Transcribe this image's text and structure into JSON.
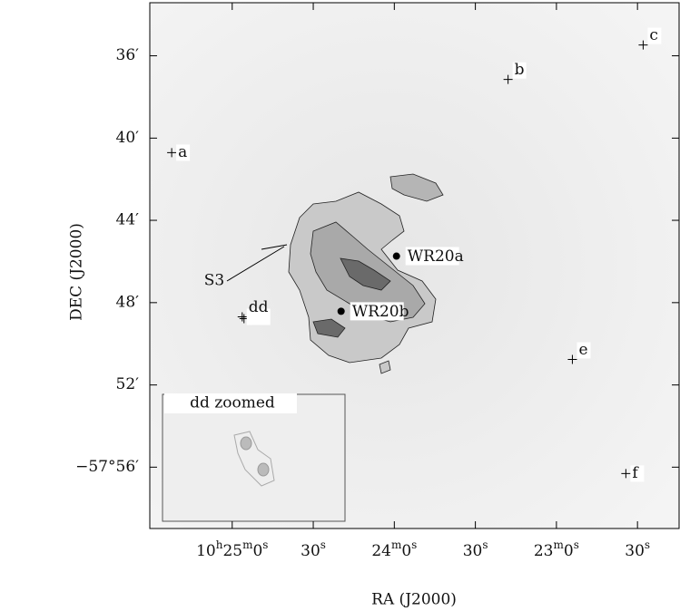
{
  "chart_data": {
    "type": "map",
    "xlabel": "RA (J2000)",
    "ylabel": "DEC (J2000)",
    "xlim": [
      37530.5,
      37334.6
    ],
    "ylim": [
      -57.983,
      -57.557
    ],
    "xticks": [
      {
        "value": 37500,
        "label": "10h25m0s"
      },
      {
        "value": 37470,
        "label": "30s"
      },
      {
        "value": 37440,
        "label": "24m0s"
      },
      {
        "value": 37410,
        "label": "30s"
      },
      {
        "value": 37380,
        "label": "23m0s"
      },
      {
        "value": 37350,
        "label": "30s"
      }
    ],
    "yticks": [
      {
        "value": -57.6,
        "label": "36′"
      },
      {
        "value": -57.6667,
        "label": "40′"
      },
      {
        "value": -57.7333,
        "label": "44′"
      },
      {
        "value": -57.8,
        "label": "48′"
      },
      {
        "value": -57.8667,
        "label": "52′"
      },
      {
        "value": -57.9333,
        "label": "−57°56′"
      }
    ],
    "sources": [
      {
        "label": "a",
        "ra": 37522.4,
        "dec": -57.6785,
        "marker": "cross"
      },
      {
        "label": "b",
        "ra": 37397.9,
        "dec": -57.6192,
        "marker": "cross"
      },
      {
        "label": "c",
        "ra": 37347.9,
        "dec": -57.5912,
        "marker": "cross"
      },
      {
        "label": "dd",
        "ra": 37496.3,
        "dec": -57.8115,
        "marker": "double-cross"
      },
      {
        "label": "e",
        "ra": 37374.1,
        "dec": -57.846,
        "marker": "cross"
      },
      {
        "label": "f",
        "ra": 37354.3,
        "dec": -57.9385,
        "marker": "cross"
      },
      {
        "label": "WR20a",
        "ra": 37439.2,
        "dec": -57.7623,
        "marker": "dot"
      },
      {
        "label": "WR20b",
        "ra": 37459.7,
        "dec": -57.807,
        "marker": "dot"
      }
    ],
    "region_label": "S3",
    "inset_title": "dd zoomed"
  }
}
